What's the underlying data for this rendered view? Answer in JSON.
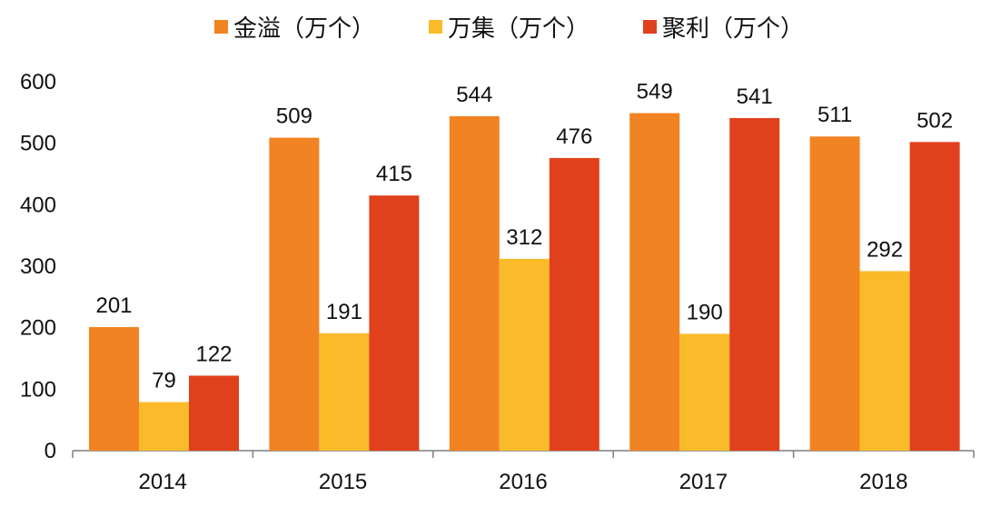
{
  "chart_data": {
    "type": "bar",
    "categories": [
      "2014",
      "2015",
      "2016",
      "2017",
      "2018"
    ],
    "series": [
      {
        "name": "金溢（万个）",
        "values": [
          201,
          509,
          544,
          549,
          511
        ],
        "color": "#F28322"
      },
      {
        "name": "万集（万个）",
        "values": [
          79,
          191,
          312,
          190,
          292
        ],
        "color": "#FBBA2A"
      },
      {
        "name": "聚利（万个）",
        "values": [
          122,
          415,
          476,
          541,
          502
        ],
        "color": "#E0401C"
      }
    ],
    "y_ticks": [
      0,
      100,
      200,
      300,
      400,
      500,
      600
    ],
    "ylim": [
      0,
      600
    ],
    "legend_position": "top-center",
    "grid": false,
    "title": "",
    "xlabel": "",
    "ylabel": ""
  }
}
